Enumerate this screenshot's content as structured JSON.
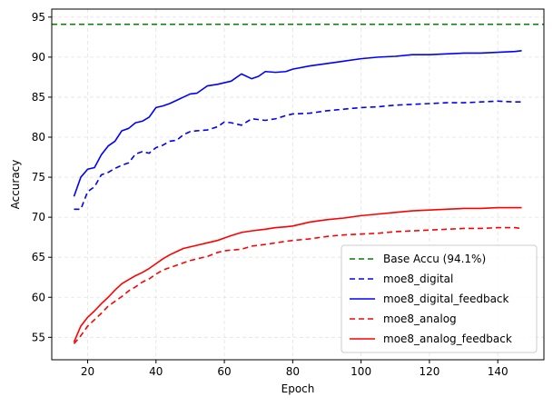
{
  "chart_data": {
    "type": "line",
    "title": "",
    "xlabel": "Epoch",
    "ylabel": "Accuracy",
    "xlim": [
      9.5,
      153.5
    ],
    "ylim": [
      52.2,
      96.0
    ],
    "xticks": [
      20,
      40,
      60,
      80,
      100,
      120,
      140
    ],
    "yticks": [
      55,
      60,
      65,
      70,
      75,
      80,
      85,
      90,
      95
    ],
    "grid": true,
    "legend_position": "lower-right",
    "hline": {
      "name": "Base Accu (94.1%)",
      "y": 94.1,
      "color": "#008000",
      "style": "dashed"
    },
    "series": [
      {
        "name": "moe8_digital",
        "color": "#0000ff",
        "style": "dashed",
        "x": [
          16,
          18,
          20,
          22,
          24,
          26,
          28,
          30,
          32,
          34,
          36,
          38,
          40,
          42,
          44,
          46,
          48,
          50,
          52,
          55,
          58,
          60,
          62,
          65,
          68,
          70,
          72,
          75,
          78,
          80,
          85,
          90,
          95,
          100,
          105,
          110,
          115,
          120,
          125,
          130,
          135,
          140,
          145,
          147
        ],
        "values": [
          71.0,
          71.0,
          73.2,
          73.8,
          75.3,
          75.6,
          76.1,
          76.5,
          76.8,
          77.9,
          78.2,
          78.0,
          78.7,
          79.0,
          79.5,
          79.6,
          80.3,
          80.7,
          80.8,
          80.9,
          81.3,
          81.9,
          81.8,
          81.5,
          82.3,
          82.2,
          82.1,
          82.3,
          82.7,
          82.9,
          83.0,
          83.3,
          83.5,
          83.7,
          83.8,
          84.0,
          84.1,
          84.2,
          84.3,
          84.3,
          84.4,
          84.5,
          84.4,
          84.4
        ]
      },
      {
        "name": "moe8_digital_feedback",
        "color": "#0000ff",
        "style": "solid",
        "x": [
          16,
          18,
          20,
          22,
          24,
          26,
          28,
          30,
          32,
          34,
          36,
          38,
          40,
          42,
          44,
          46,
          48,
          50,
          52,
          55,
          58,
          60,
          62,
          65,
          68,
          70,
          72,
          75,
          78,
          80,
          85,
          90,
          95,
          100,
          105,
          110,
          115,
          120,
          125,
          130,
          135,
          140,
          145,
          147
        ],
        "values": [
          72.6,
          75.0,
          76.0,
          76.2,
          77.8,
          78.9,
          79.5,
          80.8,
          81.1,
          81.8,
          82.0,
          82.5,
          83.7,
          83.9,
          84.2,
          84.6,
          85.0,
          85.4,
          85.5,
          86.4,
          86.6,
          86.8,
          87.0,
          87.9,
          87.3,
          87.6,
          88.2,
          88.1,
          88.2,
          88.5,
          88.9,
          89.2,
          89.5,
          89.8,
          90.0,
          90.1,
          90.3,
          90.3,
          90.4,
          90.5,
          90.5,
          90.6,
          90.7,
          90.8
        ]
      },
      {
        "name": "moe8_analog",
        "color": "#ff0000",
        "style": "dashed",
        "x": [
          16,
          18,
          20,
          22,
          24,
          26,
          28,
          30,
          32,
          34,
          36,
          38,
          40,
          42,
          44,
          46,
          48,
          50,
          52,
          55,
          58,
          60,
          62,
          65,
          68,
          70,
          72,
          75,
          78,
          80,
          85,
          90,
          95,
          100,
          105,
          110,
          115,
          120,
          125,
          130,
          135,
          140,
          145,
          147
        ],
        "values": [
          54.2,
          55.2,
          56.4,
          57.2,
          58.0,
          58.9,
          59.5,
          60.1,
          60.8,
          61.3,
          61.9,
          62.3,
          62.9,
          63.4,
          63.7,
          64.0,
          64.3,
          64.6,
          64.8,
          65.1,
          65.6,
          65.8,
          65.9,
          66.0,
          66.4,
          66.5,
          66.6,
          66.8,
          67.0,
          67.1,
          67.3,
          67.6,
          67.8,
          67.9,
          68.0,
          68.2,
          68.3,
          68.4,
          68.5,
          68.6,
          68.6,
          68.7,
          68.7,
          68.6
        ]
      },
      {
        "name": "moe8_analog_feedback",
        "color": "#ff0000",
        "style": "solid",
        "x": [
          16,
          18,
          20,
          22,
          24,
          26,
          28,
          30,
          32,
          34,
          36,
          38,
          40,
          42,
          44,
          46,
          48,
          50,
          52,
          55,
          58,
          60,
          62,
          65,
          68,
          70,
          72,
          75,
          78,
          80,
          85,
          90,
          95,
          100,
          105,
          110,
          115,
          120,
          125,
          130,
          135,
          140,
          145,
          147
        ],
        "values": [
          54.4,
          56.4,
          57.5,
          58.3,
          59.2,
          60.0,
          60.9,
          61.7,
          62.2,
          62.7,
          63.1,
          63.6,
          64.2,
          64.8,
          65.3,
          65.7,
          66.1,
          66.3,
          66.5,
          66.8,
          67.1,
          67.4,
          67.7,
          68.1,
          68.3,
          68.4,
          68.5,
          68.7,
          68.8,
          68.9,
          69.4,
          69.7,
          69.9,
          70.2,
          70.4,
          70.6,
          70.8,
          70.9,
          71.0,
          71.1,
          71.1,
          71.2,
          71.2,
          71.2
        ]
      }
    ],
    "legend": [
      "Base Accu (94.1%)",
      "moe8_digital",
      "moe8_digital_feedback",
      "moe8_analog",
      "moe8_analog_feedback"
    ]
  }
}
